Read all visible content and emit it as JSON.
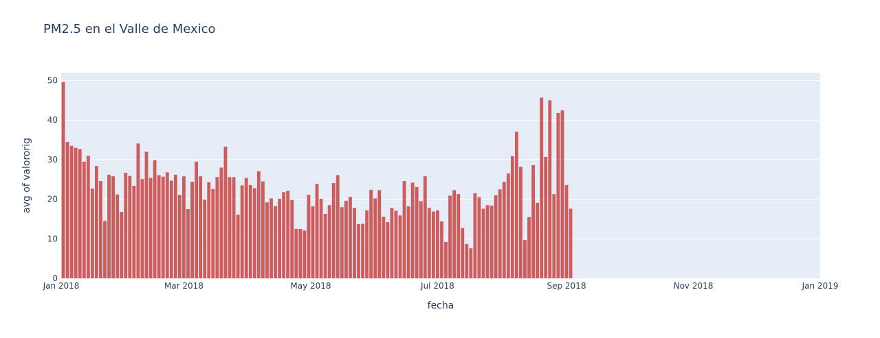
{
  "chart_data": {
    "type": "bar",
    "title": "PM2.5 en el Valle de Mexico",
    "xlabel": "fecha",
    "ylabel": "avg of valororig",
    "bar_color": "#cd5c5c",
    "plot_bg": "#e5ecf6",
    "grid": true,
    "ylim": [
      0,
      52
    ],
    "y_ticks": [
      0,
      10,
      20,
      30,
      40,
      50
    ],
    "x_ticks": [
      {
        "date": "2018-01-01",
        "label": "Jan 2018"
      },
      {
        "date": "2018-03-01",
        "label": "Mar 2018"
      },
      {
        "date": "2018-05-01",
        "label": "May 2018"
      },
      {
        "date": "2018-07-01",
        "label": "Jul 2018"
      },
      {
        "date": "2018-09-01",
        "label": "Sep 2018"
      },
      {
        "date": "2018-11-01",
        "label": "Nov 2018"
      },
      {
        "date": "2019-01-01",
        "label": "Jan 2019"
      }
    ],
    "x_range": [
      "2018-01-01",
      "2019-01-01"
    ],
    "bin_days": 2,
    "values": [
      49.6,
      34.5,
      33.5,
      33.0,
      32.7,
      29.5,
      31.0,
      22.7,
      28.4,
      24.6,
      14.5,
      26.2,
      25.8,
      21.2,
      16.8,
      26.7,
      25.9,
      23.4,
      34.1,
      25.1,
      32.0,
      25.4,
      29.9,
      26.1,
      25.7,
      26.8,
      24.7,
      26.2,
      21.1,
      25.8,
      17.5,
      24.4,
      29.5,
      25.8,
      19.9,
      24.3,
      22.6,
      25.6,
      28.0,
      33.3,
      25.6,
      25.6,
      16.1,
      23.5,
      25.4,
      23.6,
      22.8,
      27.1,
      24.5,
      19.2,
      20.2,
      18.3,
      20.1,
      21.8,
      22.1,
      19.8,
      12.5,
      12.5,
      12.1,
      21.1,
      18.2,
      23.9,
      20.1,
      16.3,
      18.5,
      24.1,
      26.1,
      18.0,
      19.6,
      20.6,
      17.8,
      13.7,
      13.8,
      17.2,
      22.4,
      20.2,
      22.3,
      15.6,
      14.2,
      17.8,
      17.1,
      15.9,
      24.6,
      18.2,
      24.2,
      23.1,
      19.5,
      25.8,
      17.8,
      16.9,
      17.2,
      14.4,
      9.2,
      20.9,
      22.3,
      21.3,
      12.7,
      8.7,
      7.6,
      21.5,
      20.5,
      17.6,
      18.5,
      18.4,
      21.0,
      22.5,
      24.4,
      26.5,
      30.9,
      37.1,
      28.2,
      9.7,
      15.5,
      28.6,
      19.1,
      45.7,
      30.7,
      45.0,
      21.3,
      41.8,
      42.5,
      23.6,
      17.6
    ]
  }
}
